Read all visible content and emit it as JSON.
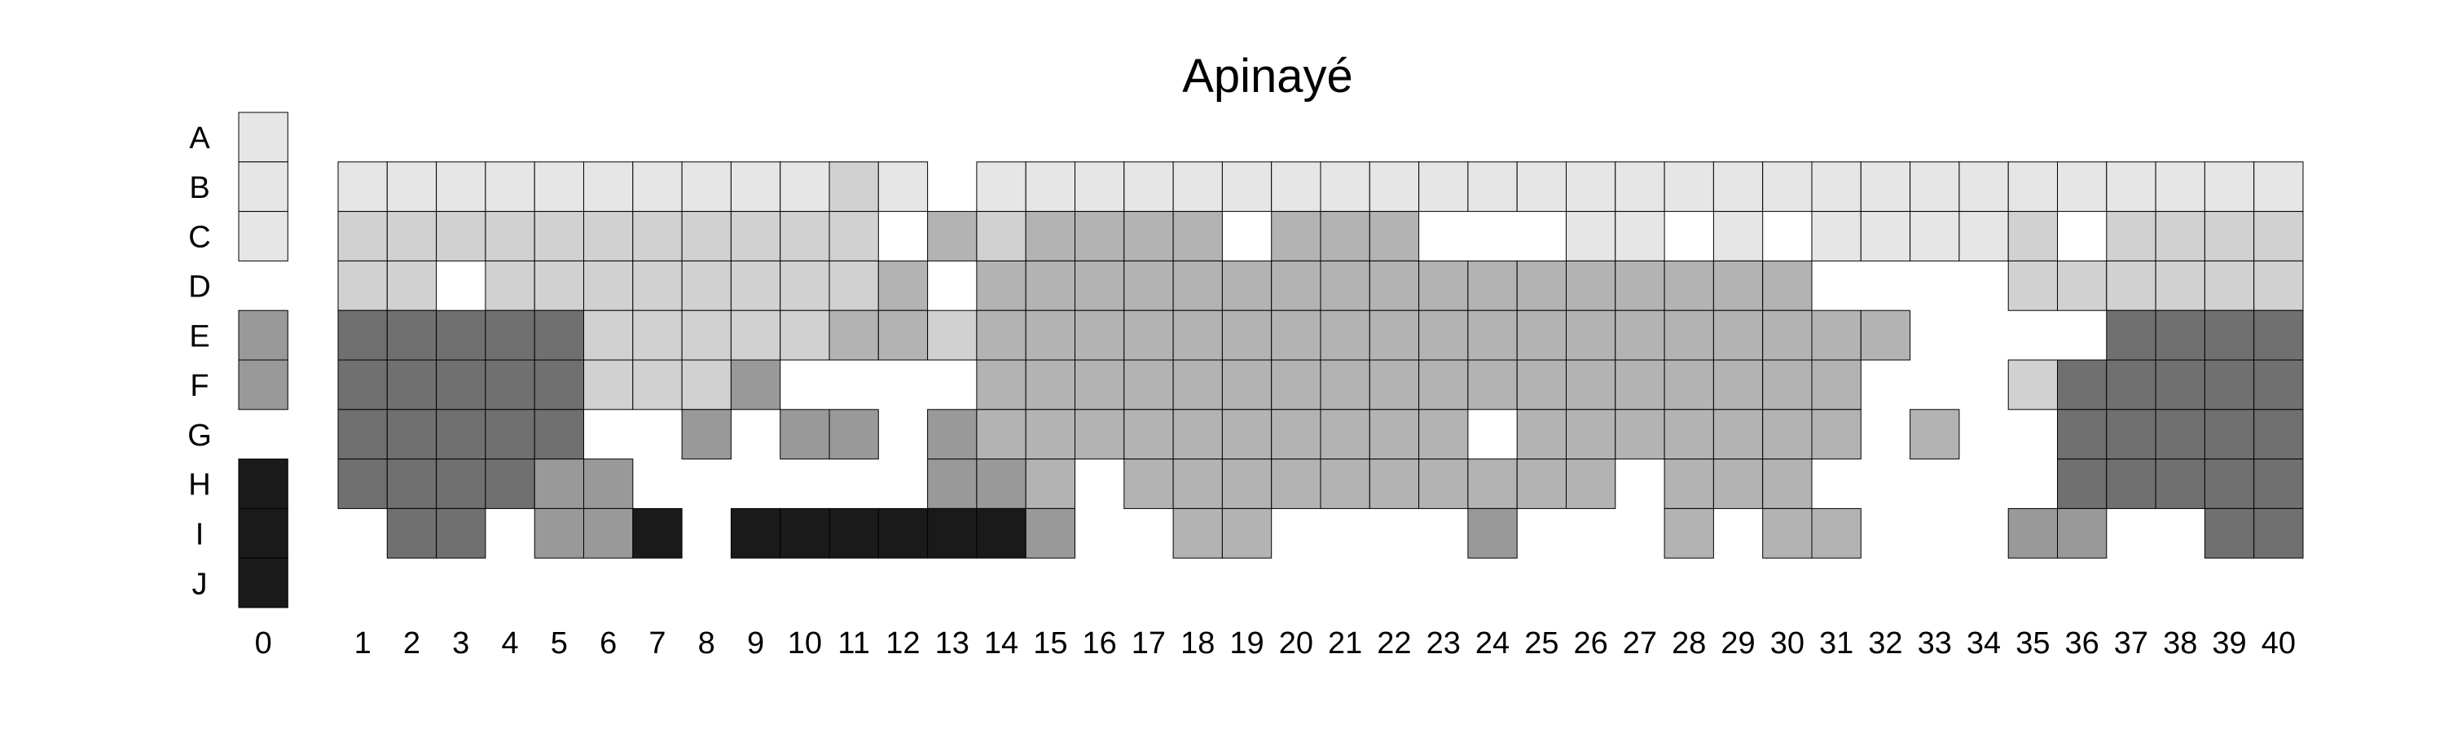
{
  "chart_data": {
    "type": "heatmap",
    "title": "Apinayé",
    "row_labels": [
      "A",
      "B",
      "C",
      "D",
      "E",
      "F",
      "G",
      "H",
      "I",
      "J"
    ],
    "column_labels": [
      "0",
      "1",
      "2",
      "3",
      "4",
      "5",
      "6",
      "7",
      "8",
      "9",
      "10",
      "11",
      "12",
      "13",
      "14",
      "15",
      "16",
      "17",
      "18",
      "19",
      "20",
      "21",
      "22",
      "23",
      "24",
      "25",
      "26",
      "27",
      "28",
      "29",
      "30",
      "31",
      "32",
      "33",
      "34",
      "35",
      "36",
      "37",
      "38",
      "39",
      "40"
    ],
    "palette": {
      "1": "#e6e6e6",
      "2": "#d1d1d1",
      "3": "#b3b3b3",
      "4": "#999999",
      "5": "#707070",
      "6": "#1a1a1a"
    },
    "reference_column": [
      1,
      1,
      1,
      0,
      4,
      4,
      0,
      6,
      6,
      6
    ],
    "grid": [
      [
        0,
        0,
        0,
        0,
        0,
        0,
        0,
        0,
        0,
        0,
        0,
        0,
        0,
        0,
        0,
        0,
        0,
        0,
        0,
        0,
        0,
        0,
        0,
        0,
        0,
        0,
        0,
        0,
        0,
        0,
        0,
        0,
        0,
        0,
        0,
        0,
        0,
        0,
        0,
        0
      ],
      [
        1,
        1,
        1,
        1,
        1,
        1,
        1,
        1,
        1,
        1,
        2,
        1,
        0,
        1,
        1,
        1,
        1,
        1,
        1,
        1,
        1,
        1,
        1,
        1,
        1,
        1,
        1,
        1,
        1,
        1,
        1,
        1,
        1,
        1,
        1,
        1,
        1,
        1,
        1,
        1
      ],
      [
        2,
        2,
        2,
        2,
        2,
        2,
        2,
        2,
        2,
        2,
        2,
        0,
        3,
        2,
        3,
        3,
        3,
        3,
        0,
        3,
        3,
        3,
        0,
        0,
        0,
        1,
        1,
        0,
        1,
        0,
        1,
        1,
        1,
        1,
        2,
        0,
        2,
        2,
        2,
        2
      ],
      [
        2,
        2,
        0,
        2,
        2,
        2,
        2,
        2,
        2,
        2,
        2,
        3,
        0,
        3,
        3,
        3,
        3,
        3,
        3,
        3,
        3,
        3,
        3,
        3,
        3,
        3,
        3,
        3,
        3,
        3,
        0,
        0,
        0,
        0,
        2,
        2,
        2,
        2,
        2,
        2
      ],
      [
        5,
        5,
        5,
        5,
        5,
        2,
        2,
        2,
        2,
        2,
        3,
        3,
        2,
        3,
        3,
        3,
        3,
        3,
        3,
        3,
        3,
        3,
        3,
        3,
        3,
        3,
        3,
        3,
        3,
        3,
        3,
        3,
        0,
        0,
        0,
        0,
        5,
        5,
        5,
        5
      ],
      [
        5,
        5,
        5,
        5,
        5,
        2,
        2,
        2,
        4,
        0,
        0,
        0,
        0,
        3,
        3,
        3,
        3,
        3,
        3,
        3,
        3,
        3,
        3,
        3,
        3,
        3,
        3,
        3,
        3,
        3,
        3,
        0,
        0,
        0,
        2,
        5,
        5,
        5,
        5,
        5
      ],
      [
        5,
        5,
        5,
        5,
        5,
        0,
        0,
        4,
        0,
        4,
        4,
        0,
        4,
        3,
        3,
        3,
        3,
        3,
        3,
        3,
        3,
        3,
        3,
        0,
        3,
        3,
        3,
        3,
        3,
        3,
        3,
        0,
        3,
        0,
        0,
        5,
        5,
        5,
        5,
        5
      ],
      [
        5,
        5,
        5,
        5,
        4,
        4,
        0,
        0,
        0,
        0,
        0,
        0,
        4,
        4,
        3,
        0,
        3,
        3,
        3,
        3,
        3,
        3,
        3,
        3,
        3,
        3,
        0,
        3,
        3,
        3,
        0,
        0,
        0,
        0,
        0,
        5,
        5,
        5,
        5,
        5
      ],
      [
        0,
        5,
        5,
        0,
        4,
        4,
        6,
        0,
        6,
        6,
        6,
        6,
        6,
        6,
        4,
        0,
        0,
        3,
        3,
        0,
        0,
        0,
        0,
        4,
        0,
        0,
        0,
        3,
        0,
        3,
        3,
        0,
        0,
        0,
        4,
        4,
        0,
        0,
        5,
        5
      ],
      [
        0,
        0,
        0,
        0,
        0,
        0,
        0,
        0,
        0,
        0,
        0,
        0,
        0,
        0,
        0,
        0,
        0,
        0,
        0,
        0,
        0,
        0,
        0,
        0,
        0,
        0,
        0,
        0,
        0,
        0,
        0,
        0,
        0,
        0,
        0,
        0,
        0,
        0,
        0,
        0
      ]
    ]
  }
}
